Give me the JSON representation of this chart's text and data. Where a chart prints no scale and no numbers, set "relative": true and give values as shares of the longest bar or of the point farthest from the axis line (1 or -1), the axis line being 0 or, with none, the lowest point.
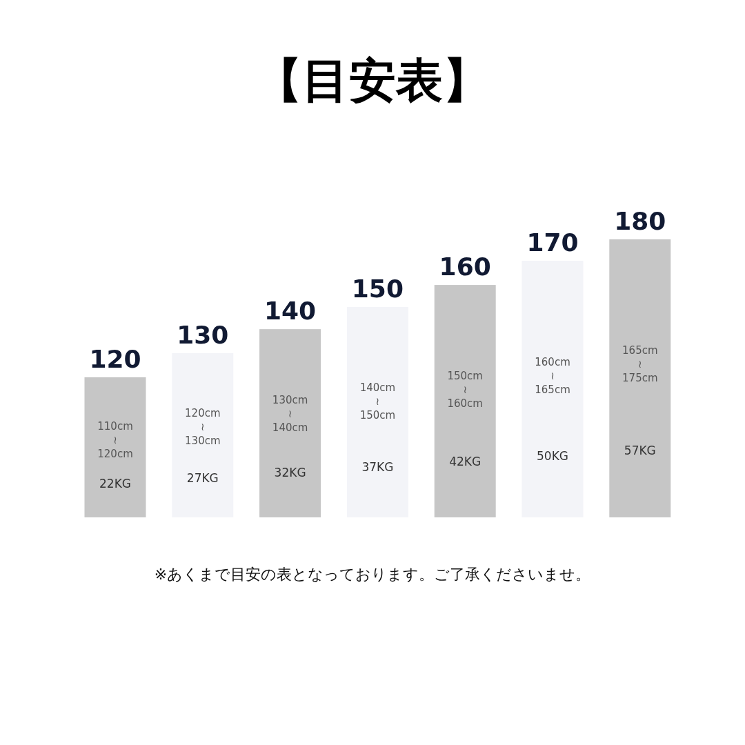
{
  "chart_data": {
    "type": "bar",
    "title": "【目安表】",
    "categories": [
      "120",
      "130",
      "140",
      "150",
      "160",
      "170",
      "180"
    ],
    "values": [
      0.504,
      0.591,
      0.677,
      0.757,
      0.836,
      0.923,
      1
    ],
    "colors": [
      "#c6c6c6",
      "#f3f4f8",
      "#c6c6c6",
      "#f3f4f8",
      "#c6c6c6",
      "#f3f4f8",
      "#c6c6c6"
    ],
    "relative": true,
    "annotations": [
      "110cm\n≀\n120cm",
      "120cm\n≀\n130cm",
      "130cm\n≀\n140cm",
      "140cm\n≀\n150cm",
      "150cm\n≀\n160cm",
      "160cm\n≀\n165cm",
      "165cm\n≀\n175cm",
      "22KG",
      "27KG",
      "32KG",
      "37KG",
      "42KG",
      "50KG",
      "57KG",
      "※あくまで目安の表となっております。ご了承くださいませ。"
    ]
  }
}
